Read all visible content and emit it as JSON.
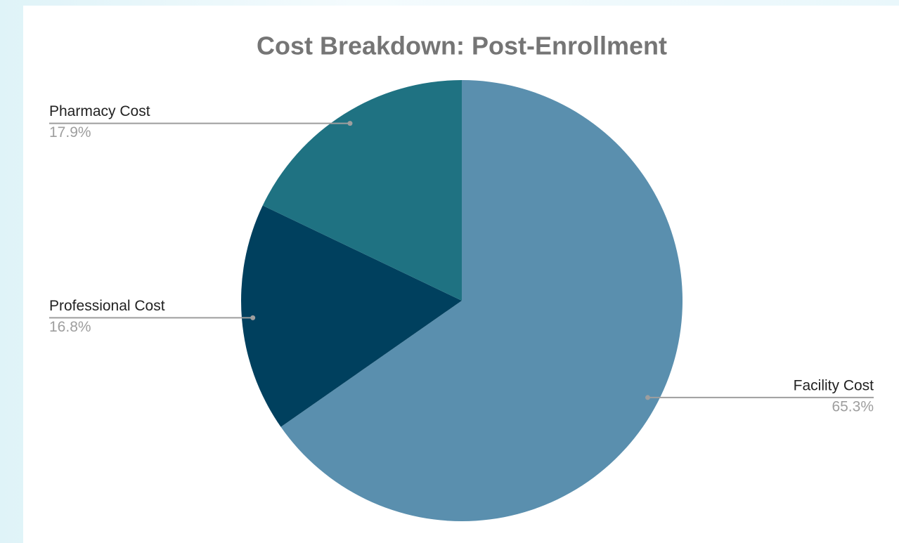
{
  "chart_data": {
    "type": "pie",
    "title": "Cost Breakdown: Post-Enrollment",
    "categories": [
      "Facility Cost",
      "Professional Cost",
      "Pharmacy Cost"
    ],
    "values": [
      65.3,
      16.8,
      17.9
    ],
    "value_labels": [
      "65.3%",
      "16.8%",
      "17.9%"
    ],
    "colors": [
      "#5a8fae",
      "#00405e",
      "#1f7282"
    ]
  }
}
